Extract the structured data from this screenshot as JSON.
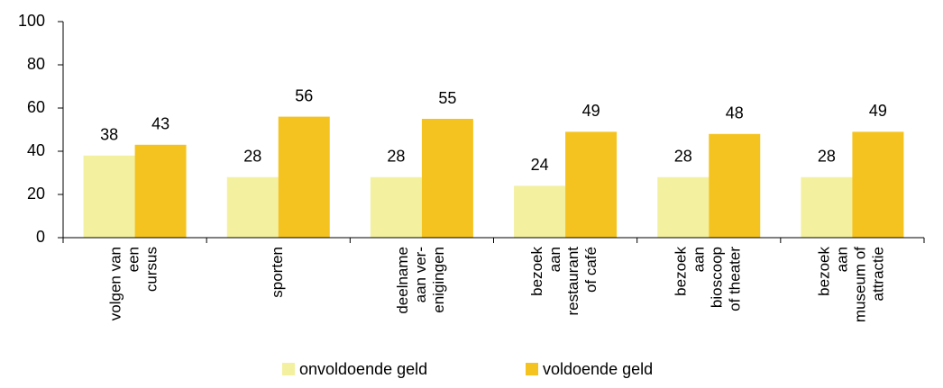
{
  "chart_data": {
    "type": "bar",
    "categories": [
      "volgen van\neen\ncursus",
      "sporten",
      "deelname\naan ver-\nenigingen",
      "bezoek\naan\nrestaurant\nof café",
      "bezoek\naan\nbioscoop\nof theater",
      "bezoek\naan\nmuseum of\nattractie"
    ],
    "series": [
      {
        "name": "onvoldoende geld",
        "color": "#f3f0a0",
        "values": [
          38,
          28,
          28,
          24,
          28,
          28
        ]
      },
      {
        "name": "voldoende geld",
        "color": "#f5c320",
        "values": [
          43,
          56,
          55,
          49,
          48,
          49
        ]
      }
    ],
    "ylim": [
      0,
      100
    ],
    "yticks": [
      0,
      20,
      40,
      60,
      80,
      100
    ],
    "grid": false,
    "legend": "bottom"
  }
}
